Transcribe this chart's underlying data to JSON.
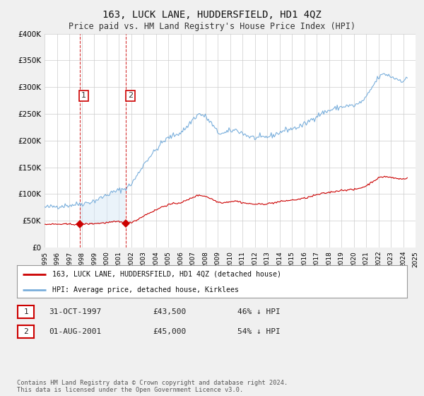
{
  "title": "163, LUCK LANE, HUDDERSFIELD, HD1 4QZ",
  "subtitle": "Price paid vs. HM Land Registry's House Price Index (HPI)",
  "title_fontsize": 10,
  "subtitle_fontsize": 8.5,
  "background_color": "#f0f0f0",
  "plot_bg_color": "#ffffff",
  "grid_color": "#cccccc",
  "red_line_color": "#cc0000",
  "blue_line_color": "#7aafdc",
  "fill_color": "#d6e8f7",
  "marker_color": "#cc0000",
  "sale1_x": 1997.833,
  "sale1_y": 43500,
  "sale1_label": "1",
  "sale2_x": 2001.583,
  "sale2_y": 45000,
  "sale2_label": "2",
  "legend_line1": "163, LUCK LANE, HUDDERSFIELD, HD1 4QZ (detached house)",
  "legend_line2": "HPI: Average price, detached house, Kirklees",
  "table_row1": [
    "1",
    "31-OCT-1997",
    "£43,500",
    "46% ↓ HPI"
  ],
  "table_row2": [
    "2",
    "01-AUG-2001",
    "£45,000",
    "54% ↓ HPI"
  ],
  "footer": "Contains HM Land Registry data © Crown copyright and database right 2024.\nThis data is licensed under the Open Government Licence v3.0.",
  "ylim": [
    0,
    400000
  ],
  "xlim": [
    1995,
    2025
  ],
  "yticks": [
    0,
    50000,
    100000,
    150000,
    200000,
    250000,
    300000,
    350000,
    400000
  ],
  "ytick_labels": [
    "£0",
    "£50K",
    "£100K",
    "£150K",
    "£200K",
    "£250K",
    "£300K",
    "£350K",
    "£400K"
  ],
  "xtick_years": [
    1995,
    1996,
    1997,
    1998,
    1999,
    2000,
    2001,
    2002,
    2003,
    2004,
    2005,
    2006,
    2007,
    2008,
    2009,
    2010,
    2011,
    2012,
    2013,
    2014,
    2015,
    2016,
    2017,
    2018,
    2019,
    2020,
    2021,
    2022,
    2023,
    2024,
    2025
  ]
}
